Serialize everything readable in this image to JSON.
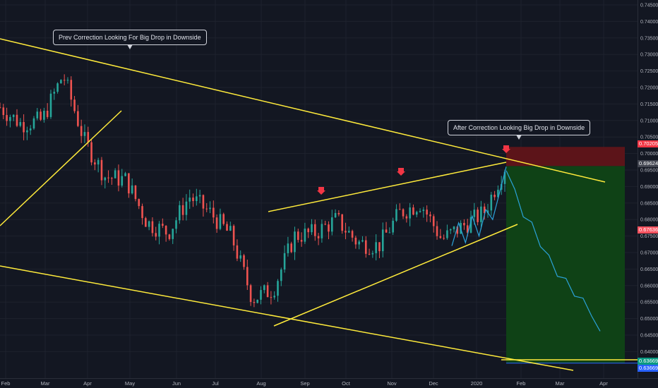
{
  "chart_data": {
    "type": "candlestick",
    "title": "",
    "xlabel": "",
    "ylabel": "",
    "ylim": [
      0.6355,
      0.7485
    ],
    "y_ticks": [
      "0.74500",
      "0.74000",
      "0.73500",
      "0.73000",
      "0.72500",
      "0.72000",
      "0.71500",
      "0.71000",
      "0.70500",
      "0.70000",
      "0.69500",
      "0.69000",
      "0.68500",
      "0.68000",
      "0.67500",
      "0.67000",
      "0.66500",
      "0.66000",
      "0.65500",
      "0.65000",
      "0.64500",
      "0.64000"
    ],
    "x_ticks": [
      "Feb",
      "Mar",
      "Apr",
      "May",
      "Jun",
      "Jul",
      "Aug",
      "Sep",
      "Oct",
      "Nov",
      "Dec",
      "2020",
      "Feb",
      "Mar",
      "Apr"
    ],
    "price_badges": [
      {
        "label": "0.70205",
        "value": 0.70205,
        "color": "#f23645"
      },
      {
        "label": "0.69624",
        "value": 0.69624,
        "color": "#434651"
      },
      {
        "label": "0.67636",
        "value": 0.67636,
        "color": "#f7525f"
      },
      {
        "label": "0.63669",
        "value": 0.63669,
        "color": "#089981"
      },
      {
        "label": "0.63669",
        "value": 0.63669,
        "color": "#2962ff"
      }
    ],
    "annotations": [
      {
        "text": "Prev Correction Looking For Big Drop in Downside"
      },
      {
        "text": "After Correction Looking Big Drop in Downside"
      }
    ],
    "trade_zone": {
      "entry": 0.6962,
      "stop": 0.702,
      "target": 0.6365
    },
    "colors": {
      "up": "#26a69a",
      "down": "#ef5350",
      "trendline": "#ffeb3b",
      "projection": "#2ba2d9",
      "stop_zone": "#5c1419",
      "target_zone": "#0f4216"
    },
    "monthly_closes": [
      0.714,
      0.709,
      0.71,
      0.724,
      0.704,
      0.693,
      0.692,
      0.679,
      0.676,
      0.687,
      0.682,
      0.675,
      0.656,
      0.659,
      0.675,
      0.676,
      0.68,
      0.673,
      0.672,
      0.682,
      0.685,
      0.674,
      0.678,
      0.682,
      0.696
    ],
    "projection_path": [
      0.696,
      0.688,
      0.682,
      0.678,
      0.673,
      0.668,
      0.664,
      0.661,
      0.658,
      0.655,
      0.652,
      0.645
    ]
  }
}
